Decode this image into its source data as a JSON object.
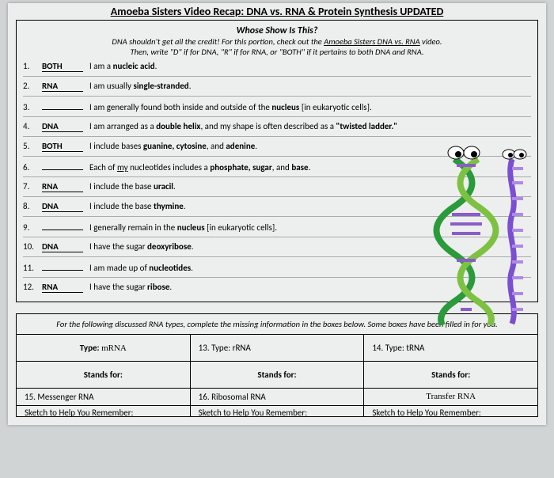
{
  "title": "Amoeba Sisters Video Recap: DNA vs. RNA & Protein Synthesis UPDATED",
  "subtitle": "Whose Show Is This?",
  "instructions_line1": "DNA shouldn't get all the credit! For this portion, check out the ",
  "instructions_link": "Amoeba Sisters DNA vs. RNA",
  "instructions_line1_end": " video.",
  "instructions_line2": "Then, write \"D\" if for DNA, \"R\" if for RNA, or \"BOTH\" if it pertains to both DNA and RNA.",
  "rows": [
    {
      "n": "1.",
      "ans": "BOTH",
      "pre": "I am a ",
      "b1": "nucleic acid",
      "post": "."
    },
    {
      "n": "2.",
      "ans": "RNA",
      "pre": "I am usually ",
      "b1": "single-stranded",
      "post": "."
    },
    {
      "n": "3.",
      "ans": "",
      "pre": "I am generally found both inside and outside of the ",
      "b1": "nucleus",
      "post": " [in eukaryotic cells]."
    },
    {
      "n": "4.",
      "ans": "DNA",
      "pre": "I am arranged as a ",
      "b1": "double helix",
      "post": ", and my shape is often described as a ",
      "b2": "\"twisted ladder.\""
    },
    {
      "n": "5.",
      "ans": "BOTH",
      "pre": "I include bases ",
      "b1": "guanine, cytosine",
      "post": ", and ",
      "b2": "adenine",
      "post2": "."
    },
    {
      "n": "6.",
      "ans": "",
      "pre": "Each of ",
      "u1": "my",
      "mid": " nucleotides includes a ",
      "b1": "phosphate, sugar",
      "post": ", and ",
      "b2": "base",
      "post2": "."
    },
    {
      "n": "7.",
      "ans": "RNA",
      "pre": "I include the base ",
      "b1": "uracil",
      "post": "."
    },
    {
      "n": "8.",
      "ans": "DNA",
      "pre": "I include the base ",
      "b1": "thymine",
      "post": "."
    },
    {
      "n": "9.",
      "ans": "",
      "pre": "I generally remain in the ",
      "b1": "nucleus",
      "post": " [in eukaryotic cells]."
    },
    {
      "n": "10.",
      "ans": "DNA",
      "pre": "I have the sugar ",
      "b1": "deoxyribose",
      "post": "."
    },
    {
      "n": "11.",
      "ans": "",
      "pre": "I am made up of ",
      "b1": "nucleotides",
      "post": "."
    },
    {
      "n": "12.",
      "ans": "RNA",
      "pre": "I have the sugar ",
      "b1": "ribose",
      "post": "."
    }
  ],
  "instructions2": "For the following discussed RNA types, complete the missing information in the boxes below. Some boxes have been filled in for you.",
  "typeLabel": "Type:",
  "standsLabel": "Stands for:",
  "sketchLabel": "Sketch to Help You Remember:",
  "col1_type_hw": "mRNA",
  "col2_type": "13. Type: rRNA",
  "col3_type": "14. Type: tRNA",
  "col1_stands": "15. Messenger RNA",
  "col2_stands": "16. Ribosomal RNA",
  "col3_stands_hw": "Transfer RNA",
  "colors": {
    "dna_fill": "#7dc143",
    "dna_stroke": "#2a9a3a",
    "rna_stroke": "#7a4fd0",
    "rna_rung": "#b088e6",
    "eye_white": "#ffffff",
    "eye_black": "#000000"
  }
}
